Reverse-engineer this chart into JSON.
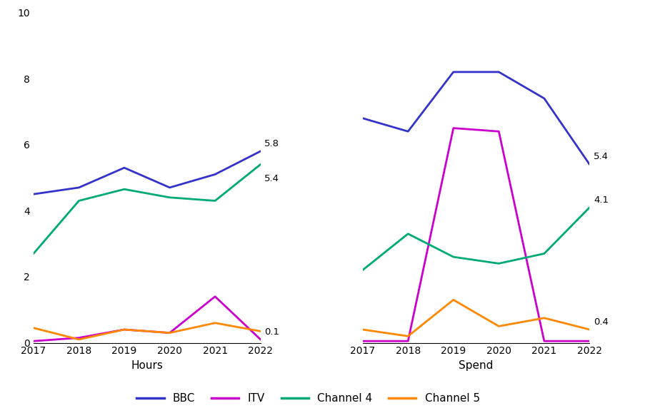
{
  "years": [
    2017,
    2018,
    2019,
    2020,
    2021,
    2022
  ],
  "hours": {
    "BBC": [
      4.5,
      4.7,
      5.3,
      4.7,
      5.1,
      5.8
    ],
    "ITV": [
      0.05,
      0.15,
      0.4,
      0.3,
      1.4,
      0.1
    ],
    "Channel4": [
      2.7,
      4.3,
      4.65,
      4.4,
      4.3,
      5.4
    ],
    "Channel5": [
      0.45,
      0.1,
      0.4,
      0.3,
      0.6,
      0.35
    ]
  },
  "spend": {
    "BBC": [
      6.8,
      6.4,
      8.2,
      8.2,
      7.4,
      5.4
    ],
    "ITV": [
      0.05,
      0.05,
      6.5,
      6.4,
      0.05,
      0.05
    ],
    "Channel4": [
      2.2,
      3.3,
      2.6,
      2.4,
      2.7,
      4.1
    ],
    "Channel5": [
      0.4,
      0.2,
      1.3,
      0.5,
      0.75,
      0.4
    ]
  },
  "colors": {
    "BBC": "#3333cc",
    "ITV": "#cc00cc",
    "Channel4": "#00aa77",
    "Channel5": "#ff8800"
  },
  "ylim": [
    0,
    10
  ],
  "yticks": [
    0,
    2,
    4,
    6,
    8,
    10
  ],
  "xlabel_hours": "Hours",
  "xlabel_spend": "Spend",
  "legend_labels": [
    "BBC",
    "ITV",
    "Channel 4",
    "Channel 5"
  ],
  "background_color": "#ffffff"
}
